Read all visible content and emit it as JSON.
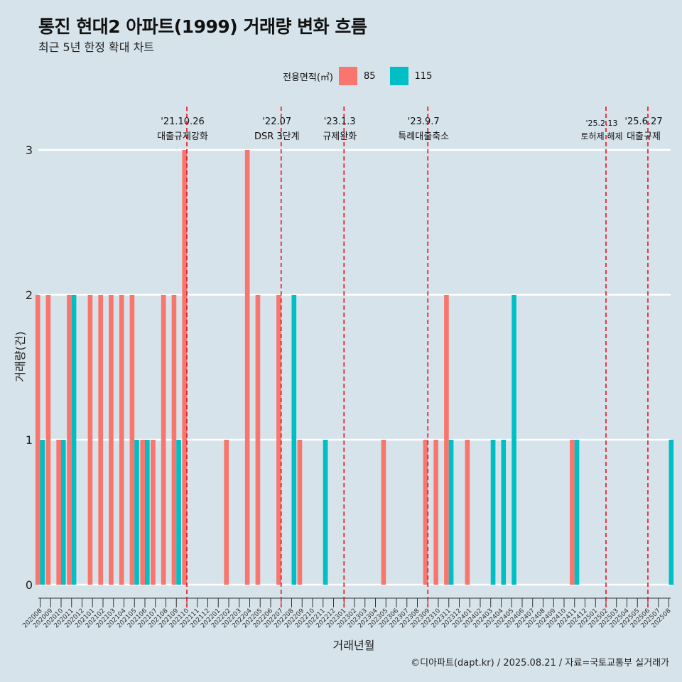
{
  "title": "통진 현대2 아파트(1999) 거래량 변화 흐름",
  "subtitle": "최근 5년 한정 확대 차트",
  "caption": "©디아파트(dapt.kr) / 2025.08.21 / 자료=국토교통부 실거래가",
  "legend": {
    "title": "전용면적(㎡)",
    "items": [
      {
        "label": "85",
        "color": "#f8766d"
      },
      {
        "label": "115",
        "color": "#00bfc4"
      }
    ]
  },
  "chart_data": {
    "type": "bar",
    "title": "통진 현대2 아파트(1999) 거래량 변화 흐름",
    "xlabel": "거래년월",
    "ylabel": "거래량(건)",
    "ylim": [
      0,
      3
    ],
    "yticks": [
      0,
      1,
      2,
      3
    ],
    "grid": true,
    "legend_position": "top",
    "categories": [
      "202008",
      "202009",
      "202010",
      "202011",
      "202012",
      "202101",
      "202102",
      "202103",
      "202104",
      "202105",
      "202106",
      "202107",
      "202108",
      "202109",
      "202110",
      "202111",
      "202112",
      "202201",
      "202202",
      "202203",
      "202204",
      "202205",
      "202206",
      "202207",
      "202208",
      "202209",
      "202210",
      "202211",
      "202212",
      "202301",
      "202302",
      "202303",
      "202304",
      "202305",
      "202306",
      "202307",
      "202308",
      "202309",
      "202310",
      "202311",
      "202312",
      "202401",
      "202402",
      "202403",
      "202404",
      "202405",
      "202406",
      "202407",
      "202408",
      "202409",
      "202410",
      "202411",
      "202412",
      "202501",
      "202502",
      "202503",
      "202504",
      "202505",
      "202506",
      "202507",
      "202508"
    ],
    "series": [
      {
        "name": "85",
        "color": "#f8766d",
        "values": [
          2,
          2,
          1,
          2,
          0,
          2,
          2,
          2,
          2,
          2,
          1,
          1,
          2,
          2,
          3,
          0,
          0,
          0,
          1,
          0,
          3,
          2,
          0,
          2,
          0,
          1,
          0,
          0,
          0,
          0,
          0,
          0,
          0,
          1,
          0,
          0,
          0,
          1,
          1,
          2,
          0,
          1,
          0,
          0,
          0,
          0,
          0,
          0,
          0,
          0,
          0,
          1,
          0,
          0,
          0,
          0,
          0,
          0,
          0,
          0,
          0
        ]
      },
      {
        "name": "115",
        "color": "#00bfc4",
        "values": [
          1,
          0,
          1,
          2,
          0,
          0,
          0,
          0,
          0,
          1,
          1,
          0,
          0,
          1,
          0,
          0,
          0,
          0,
          0,
          0,
          0,
          0,
          0,
          0,
          2,
          0,
          0,
          1,
          0,
          0,
          0,
          0,
          0,
          0,
          0,
          0,
          0,
          0,
          0,
          1,
          0,
          0,
          0,
          1,
          1,
          2,
          0,
          0,
          0,
          0,
          0,
          1,
          0,
          0,
          0,
          0,
          0,
          0,
          0,
          0,
          1
        ]
      }
    ],
    "annotations": [
      {
        "category": "202110",
        "date": "'21.10.26",
        "label": "대출규제강화"
      },
      {
        "category": "202207",
        "date": "'22.07",
        "label": "DSR 3단계"
      },
      {
        "category": "202301",
        "date": "'23.1.3",
        "label": "규제완화"
      },
      {
        "category": "202309",
        "date": "'23.9.7",
        "label": "특례대출축소"
      },
      {
        "category": "202502",
        "date": "'25.2.13",
        "label": "토허제 해제"
      },
      {
        "category": "202506",
        "date": "'25.6.27",
        "label": "대출규제"
      }
    ]
  }
}
